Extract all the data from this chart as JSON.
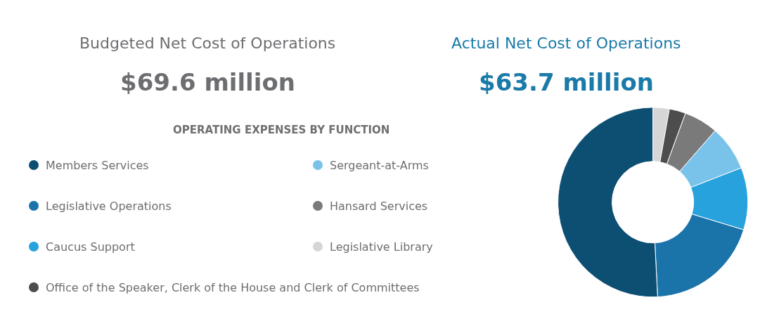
{
  "chart_data": {
    "type": "donut",
    "title": "OPERATING EXPENSES BY FUNCTION",
    "annotations": [
      "Budgeted Net Cost of Operations",
      "$69.6 million",
      "Actual Net Cost of Operations",
      "$63.7 million"
    ],
    "categories": [
      "Legislative Library",
      "Office of the Speaker, Clerk of the House and Clerk of Committees",
      "Hansard Services",
      "Sergeant-at-Arms",
      "Caucus Support",
      "Legislative Operations",
      "Members Services"
    ],
    "values": [
      2.8,
      2.8,
      5.8,
      7.7,
      10.6,
      19.5,
      50.8
    ],
    "colors": [
      "#d6d6d6",
      "#4d4d4d",
      "#7a7a7a",
      "#79c3ea",
      "#27a2dc",
      "#1a74aa",
      "#0d4f73"
    ],
    "legend": "left"
  }
}
